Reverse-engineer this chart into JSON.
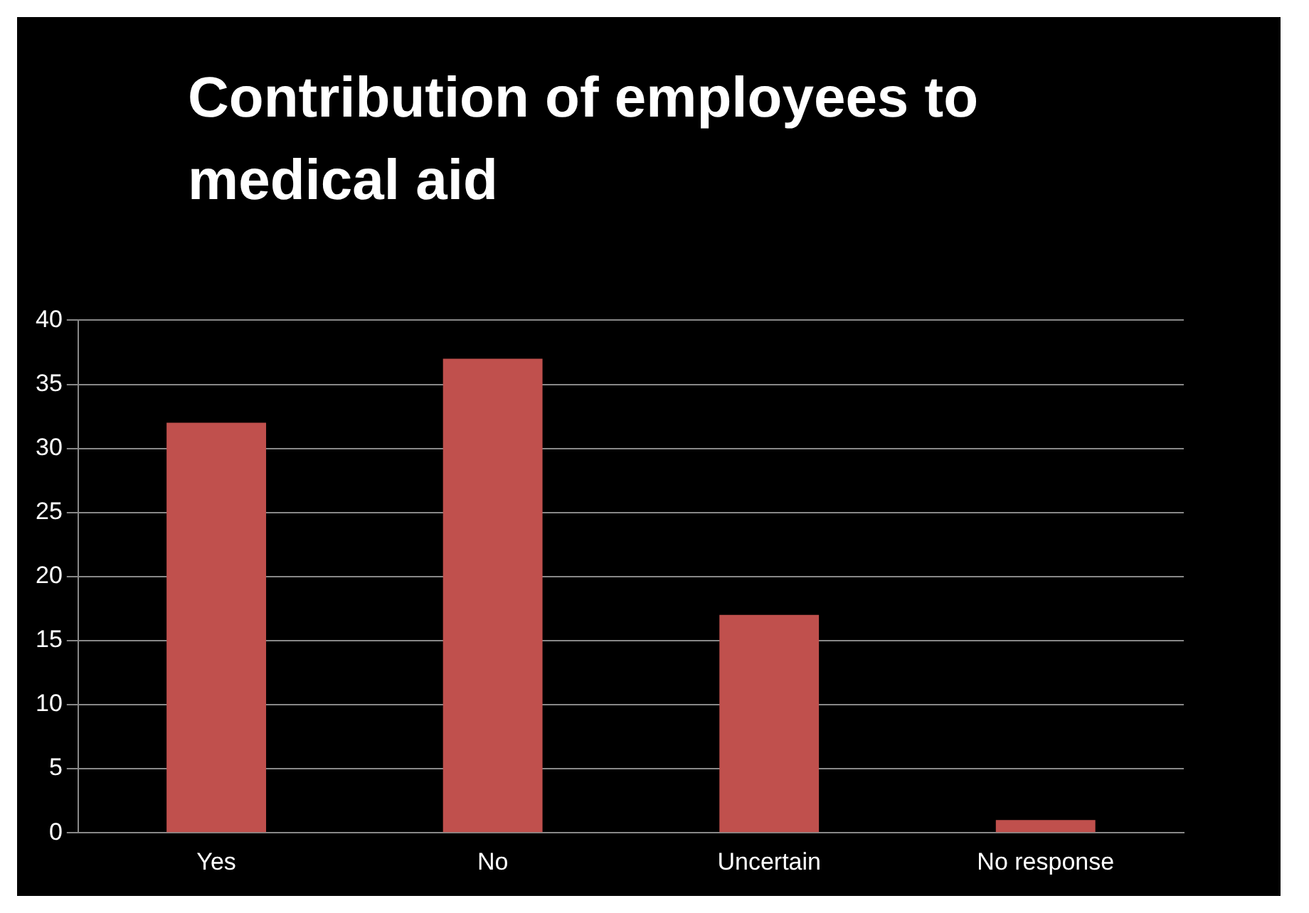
{
  "chart_data": {
    "type": "bar",
    "title": "Contribution of employees to medical aid",
    "categories": [
      "Yes",
      "No",
      "Uncertain",
      "No response"
    ],
    "values": [
      32,
      37,
      17,
      1
    ],
    "color": "#c0504d",
    "ylim": [
      0,
      40
    ],
    "yticks": [
      0,
      5,
      10,
      15,
      20,
      25,
      30,
      35,
      40
    ],
    "grid": true
  }
}
